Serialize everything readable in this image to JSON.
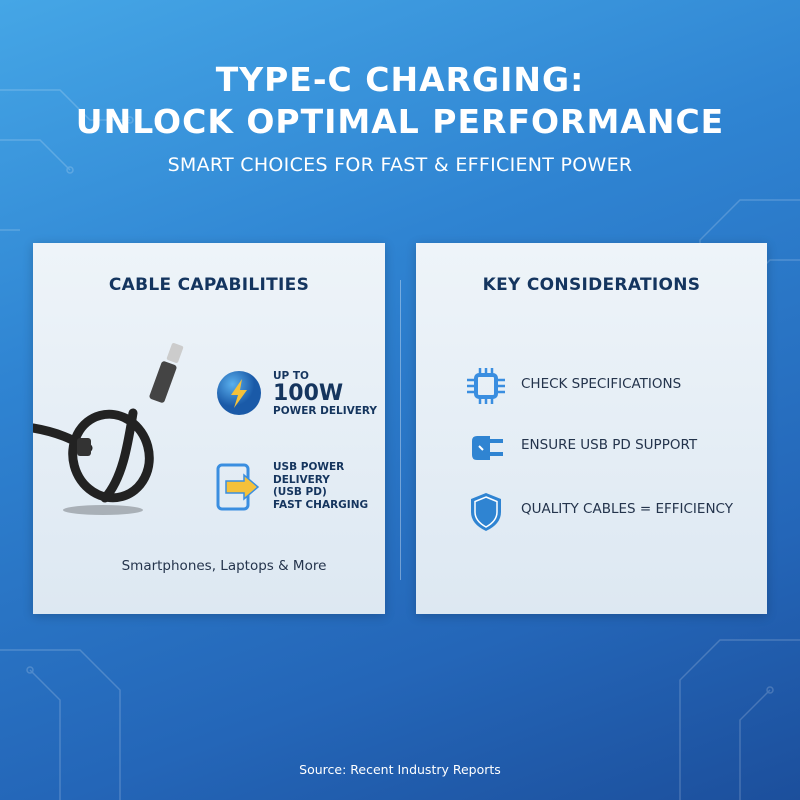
{
  "header": {
    "title_line1": "TYPE-C CHARGING:",
    "title_line2": "UNLOCK OPTIMAL PERFORMANCE",
    "subtitle": "SMART CHOICES FOR FAST & EFFICIENT POWER"
  },
  "cable_card": {
    "title": "CABLE CAPABILITIES",
    "power": {
      "prefix": "UP TO",
      "value": "100W",
      "suffix": "POWER DELIVERY",
      "icon": "lightning-bolt-icon"
    },
    "pd": {
      "lines": [
        "USB POWER",
        "DELIVERY",
        "(USB PD)",
        "FAST CHARGING"
      ],
      "icon": "arrow-into-device-icon"
    },
    "devices": "Smartphones, Laptops & More"
  },
  "considerations_card": {
    "title": "KEY CONSIDERATIONS",
    "items": [
      {
        "label": "CHECK SPECIFICATIONS",
        "icon": "chip-icon"
      },
      {
        "label": "ENSURE USB PD SUPPORT",
        "icon": "plug-icon"
      },
      {
        "label": "QUALITY CABLES = EFFICIENCY",
        "icon": "shield-icon"
      }
    ]
  },
  "footer": {
    "source": "Source: Recent Industry Reports"
  },
  "colors": {
    "accent": "#2f84d2",
    "heading": "#14355f",
    "bolt": "#f5c13a"
  }
}
